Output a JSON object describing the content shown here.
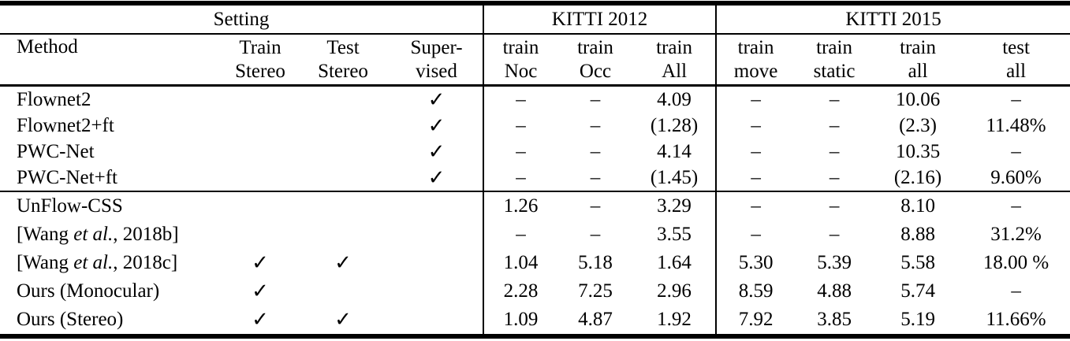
{
  "group_headers": [
    {
      "label": "Setting",
      "span": 4
    },
    {
      "label": "KITTI 2012",
      "span": 3
    },
    {
      "label": "KITTI 2015",
      "span": 4
    }
  ],
  "columns": [
    {
      "line1": "Method",
      "line2": ""
    },
    {
      "line1": "Train",
      "line2": "Stereo"
    },
    {
      "line1": "Test",
      "line2": "Stereo"
    },
    {
      "line1": "Super-",
      "line2": "vised"
    },
    {
      "line1": "train",
      "line2": "Noc"
    },
    {
      "line1": "train",
      "line2": "Occ"
    },
    {
      "line1": "train",
      "line2": "All"
    },
    {
      "line1": "train",
      "line2": "move"
    },
    {
      "line1": "train",
      "line2": "static"
    },
    {
      "line1": "train",
      "line2": "all"
    },
    {
      "line1": "test",
      "line2": "all"
    }
  ],
  "check_symbol": "✓",
  "dash": "–",
  "sections": [
    {
      "rows": [
        {
          "method": {
            "pre": "Flownet2",
            "italic": "",
            "post": ""
          },
          "train_stereo": false,
          "test_stereo": false,
          "supervised": true,
          "values": [
            {
              "t": "–",
              "b": false
            },
            {
              "t": "–",
              "b": false
            },
            {
              "t": "4.09",
              "b": true
            },
            {
              "t": "–",
              "b": false
            },
            {
              "t": "–",
              "b": false
            },
            {
              "t": "10.06",
              "b": true
            },
            {
              "t": "–",
              "b": false
            }
          ]
        },
        {
          "method": {
            "pre": "Flownet2+ft",
            "italic": "",
            "post": ""
          },
          "train_stereo": false,
          "test_stereo": false,
          "supervised": true,
          "values": [
            {
              "t": "–",
              "b": false
            },
            {
              "t": "–",
              "b": false
            },
            {
              "t": "(1.28)",
              "b": false
            },
            {
              "t": "–",
              "b": false
            },
            {
              "t": "–",
              "b": false
            },
            {
              "t": "(2.3)",
              "b": false
            },
            {
              "t": "11.48%",
              "b": false
            }
          ]
        },
        {
          "method": {
            "pre": "PWC-Net",
            "italic": "",
            "post": ""
          },
          "train_stereo": false,
          "test_stereo": false,
          "supervised": true,
          "values": [
            {
              "t": "–",
              "b": false
            },
            {
              "t": "–",
              "b": false
            },
            {
              "t": "4.14",
              "b": false
            },
            {
              "t": "–",
              "b": false
            },
            {
              "t": "–",
              "b": false
            },
            {
              "t": "10.35",
              "b": false
            },
            {
              "t": "–",
              "b": false
            }
          ]
        },
        {
          "method": {
            "pre": "PWC-Net+ft",
            "italic": "",
            "post": ""
          },
          "train_stereo": false,
          "test_stereo": false,
          "supervised": true,
          "values": [
            {
              "t": "–",
              "b": false
            },
            {
              "t": "–",
              "b": false
            },
            {
              "t": "(1.45)",
              "b": false
            },
            {
              "t": "–",
              "b": false
            },
            {
              "t": "–",
              "b": false
            },
            {
              "t": "(2.16)",
              "b": false
            },
            {
              "t": "9.60%",
              "b": true
            }
          ]
        }
      ]
    },
    {
      "rows": [
        {
          "method": {
            "pre": "UnFlow-CSS",
            "italic": "",
            "post": ""
          },
          "train_stereo": false,
          "test_stereo": false,
          "supervised": false,
          "values": [
            {
              "t": "1.26",
              "b": false
            },
            {
              "t": "–",
              "b": false
            },
            {
              "t": "3.29",
              "b": false
            },
            {
              "t": "–",
              "b": false
            },
            {
              "t": "–",
              "b": false
            },
            {
              "t": "8.10",
              "b": false
            },
            {
              "t": "–",
              "b": false
            }
          ]
        },
        {
          "method": {
            "pre": "[Wang ",
            "italic": "et al.",
            "post": ", 2018b]"
          },
          "train_stereo": false,
          "test_stereo": false,
          "supervised": false,
          "values": [
            {
              "t": "–",
              "b": false
            },
            {
              "t": "–",
              "b": false
            },
            {
              "t": "3.55",
              "b": false
            },
            {
              "t": "–",
              "b": false
            },
            {
              "t": "–",
              "b": false
            },
            {
              "t": "8.88",
              "b": false
            },
            {
              "t": "31.2%",
              "b": false
            }
          ]
        },
        {
          "method": {
            "pre": "[Wang ",
            "italic": "et al.",
            "post": ", 2018c]"
          },
          "train_stereo": true,
          "test_stereo": true,
          "supervised": false,
          "values": [
            {
              "t": "1.04",
              "b": true
            },
            {
              "t": "5.18",
              "b": false
            },
            {
              "t": "1.64",
              "b": true
            },
            {
              "t": "5.30",
              "b": true
            },
            {
              "t": "5.39",
              "b": false
            },
            {
              "t": "5.58",
              "b": false
            },
            {
              "t": "18.00 %",
              "b": false
            }
          ]
        },
        {
          "method": {
            "pre": "Ours (Monocular)",
            "italic": "",
            "post": ""
          },
          "train_stereo": true,
          "test_stereo": false,
          "supervised": false,
          "values": [
            {
              "t": "2.28",
              "b": false
            },
            {
              "t": "7.25",
              "b": false
            },
            {
              "t": "2.96",
              "b": false
            },
            {
              "t": "8.59",
              "b": false
            },
            {
              "t": "4.88",
              "b": false
            },
            {
              "t": "5.74",
              "b": false
            },
            {
              "t": "–",
              "b": false
            }
          ]
        },
        {
          "method": {
            "pre": "Ours (Stereo)",
            "italic": "",
            "post": ""
          },
          "train_stereo": true,
          "test_stereo": true,
          "supervised": false,
          "values": [
            {
              "t": "1.09",
              "b": false
            },
            {
              "t": "4.87",
              "b": true
            },
            {
              "t": "1.92",
              "b": false
            },
            {
              "t": "7.92",
              "b": false
            },
            {
              "t": "3.85",
              "b": true
            },
            {
              "t": "5.19",
              "b": true
            },
            {
              "t": "11.66%",
              "b": true
            }
          ]
        }
      ]
    }
  ]
}
